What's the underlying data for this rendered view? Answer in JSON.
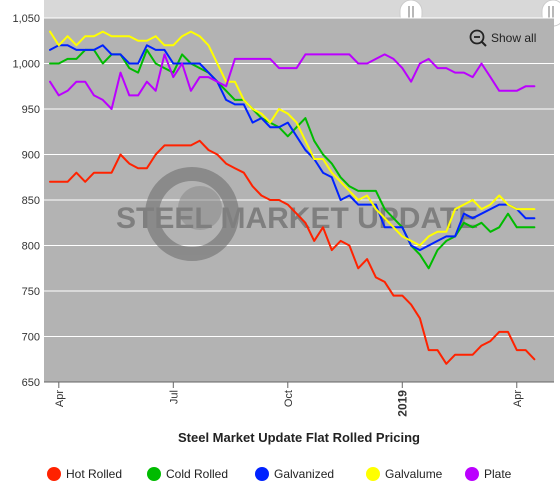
{
  "chart_data": {
    "type": "line",
    "title": "Steel Market Update Flat Rolled Pricing",
    "watermark": "STEEL MARKET UPDATE",
    "zoom_control": {
      "label": "Show all",
      "icon": "zoom-out-icon"
    },
    "ylim": [
      650,
      1050
    ],
    "yticks": [
      650,
      700,
      750,
      800,
      850,
      900,
      950,
      1000,
      1050
    ],
    "ytick_labels": [
      "650",
      "700",
      "750",
      "800",
      "850",
      "900",
      "950",
      "1,000",
      "1,050"
    ],
    "x_index_range": [
      0,
      57
    ],
    "xticks": [
      {
        "label": "Apr",
        "index": 1,
        "bold": false
      },
      {
        "label": "Jul",
        "index": 14,
        "bold": false
      },
      {
        "label": "Oct",
        "index": 27,
        "bold": false
      },
      {
        "label": "2019",
        "index": 40,
        "bold": true
      },
      {
        "label": "Apr",
        "index": 53,
        "bold": false
      }
    ],
    "legend_position": "bottom",
    "plot_background": "#b3b3b3",
    "navigator_background": "#d8d8d8",
    "series": [
      {
        "name": "Hot Rolled",
        "color": "#ff2200",
        "values": [
          870,
          870,
          870,
          880,
          870,
          880,
          880,
          880,
          900,
          890,
          885,
          885,
          900,
          910,
          910,
          910,
          910,
          915,
          905,
          900,
          890,
          885,
          880,
          865,
          855,
          850,
          850,
          845,
          835,
          825,
          805,
          820,
          795,
          805,
          800,
          775,
          785,
          765,
          760,
          745,
          745,
          735,
          720,
          685,
          685,
          670,
          680,
          680,
          680,
          690,
          695,
          705,
          705,
          685,
          685,
          675
        ]
      },
      {
        "name": "Cold Rolled",
        "color": "#00bb00",
        "values": [
          1000,
          1000,
          1005,
          1005,
          1015,
          1015,
          1000,
          1010,
          1010,
          995,
          990,
          1015,
          1000,
          995,
          990,
          1010,
          1000,
          995,
          990,
          980,
          970,
          960,
          960,
          950,
          940,
          935,
          930,
          920,
          930,
          940,
          915,
          900,
          890,
          875,
          865,
          860,
          860,
          860,
          840,
          830,
          820,
          800,
          790,
          775,
          795,
          805,
          810,
          825,
          820,
          825,
          815,
          820,
          835,
          820,
          820,
          820
        ]
      },
      {
        "name": "Galvanized",
        "color": "#0022ff",
        "values": [
          1015,
          1020,
          1020,
          1015,
          1015,
          1015,
          1020,
          1010,
          1010,
          1000,
          1000,
          1020,
          1015,
          1015,
          1000,
          1000,
          1000,
          1000,
          990,
          980,
          960,
          955,
          955,
          935,
          940,
          930,
          930,
          935,
          920,
          905,
          895,
          880,
          875,
          850,
          855,
          845,
          845,
          845,
          820,
          820,
          820,
          800,
          795,
          800,
          805,
          810,
          810,
          835,
          830,
          835,
          840,
          845,
          845,
          840,
          830,
          830
        ]
      },
      {
        "name": "Galvalume",
        "color": "#ffff00",
        "values": [
          1035,
          1020,
          1030,
          1020,
          1030,
          1030,
          1035,
          1030,
          1030,
          1030,
          1025,
          1025,
          1030,
          1020,
          1020,
          1030,
          1035,
          1030,
          1020,
          1000,
          980,
          980,
          960,
          950,
          945,
          935,
          950,
          945,
          935,
          915,
          895,
          895,
          880,
          870,
          860,
          850,
          855,
          840,
          830,
          820,
          810,
          805,
          800,
          810,
          815,
          815,
          840,
          845,
          850,
          840,
          845,
          855,
          845,
          840,
          840,
          840
        ]
      },
      {
        "name": "Plate",
        "color": "#bb00ff",
        "values": [
          980,
          965,
          970,
          980,
          980,
          965,
          960,
          950,
          990,
          965,
          965,
          980,
          970,
          1010,
          985,
          1000,
          970,
          985,
          985,
          980,
          975,
          1005,
          1005,
          1005,
          1005,
          1005,
          995,
          995,
          995,
          1010,
          1010,
          1010,
          1010,
          1010,
          1010,
          1000,
          1000,
          1005,
          1010,
          1005,
          995,
          980,
          1000,
          1005,
          995,
          995,
          990,
          990,
          985,
          1000,
          985,
          970,
          970,
          970,
          975,
          975
        ]
      }
    ]
  }
}
